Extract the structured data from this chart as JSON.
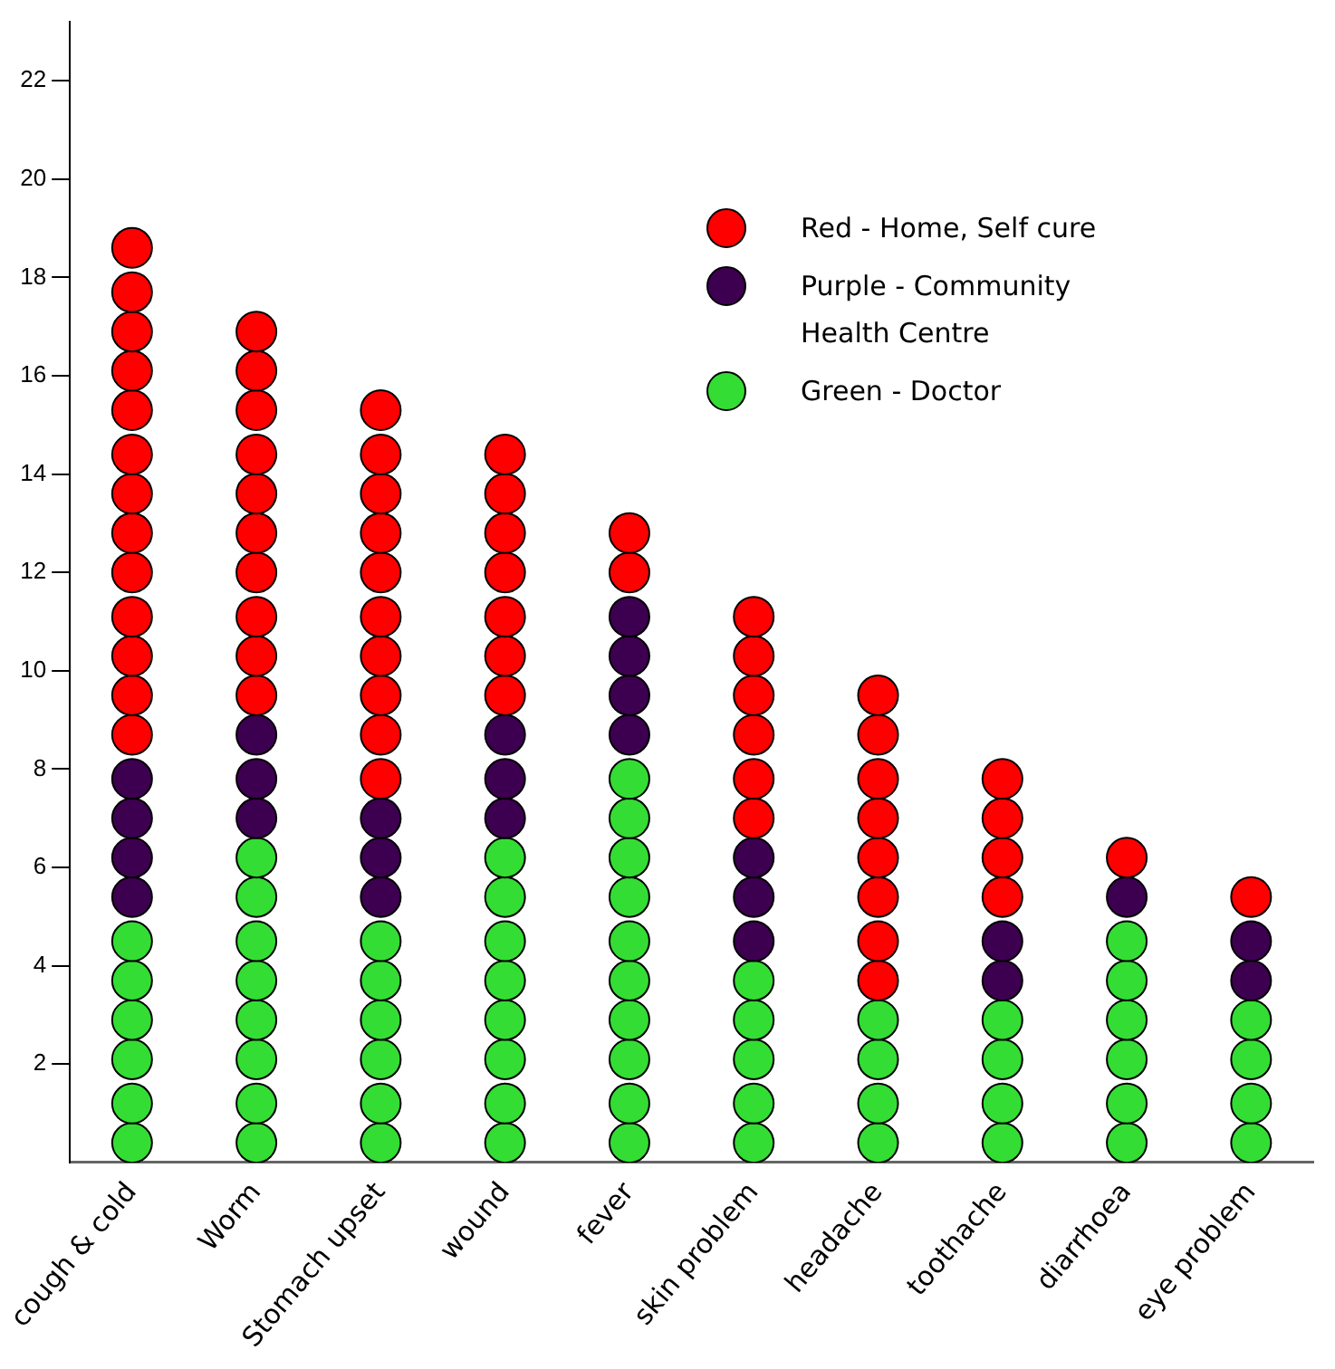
{
  "chart_data": {
    "type": "scatter",
    "categories": [
      "cough & cold",
      "Worm",
      "Stomach upset",
      "wound",
      "fever",
      "skin problem",
      "headache",
      "toothache",
      "diarrhoea",
      "eye problem"
    ],
    "ylim": [
      0,
      23.2
    ],
    "yticks": [
      2,
      4,
      6,
      8,
      10,
      12,
      14,
      16,
      18,
      20,
      22
    ],
    "grid": false,
    "legend": "top right",
    "marker": "circle",
    "series": [
      {
        "name": "Red - Home, Self cure",
        "color": "#ff0000",
        "x": [
          "cough & cold",
          "cough & cold",
          "cough & cold",
          "cough & cold",
          "cough & cold",
          "cough & cold",
          "cough & cold",
          "cough & cold",
          "cough & cold",
          "cough & cold",
          "cough & cold",
          "cough & cold",
          "cough & cold",
          "Worm",
          "Worm",
          "Worm",
          "Worm",
          "Worm",
          "Worm",
          "Worm",
          "Worm",
          "Worm",
          "Worm",
          "Stomach upset",
          "Stomach upset",
          "Stomach upset",
          "Stomach upset",
          "Stomach upset",
          "Stomach upset",
          "Stomach upset",
          "Stomach upset",
          "Stomach upset",
          "Stomach upset",
          "wound",
          "wound",
          "wound",
          "wound",
          "wound",
          "wound",
          "wound",
          "fever",
          "fever",
          "skin problem",
          "skin problem",
          "skin problem",
          "skin problem",
          "skin problem",
          "skin problem",
          "headache",
          "headache",
          "headache",
          "headache",
          "headache",
          "headache",
          "headache",
          "headache",
          "toothache",
          "toothache",
          "toothache",
          "toothache",
          "diarrhoea",
          "eye problem"
        ],
        "values": [
          8.7,
          9.5,
          10.3,
          11.1,
          12.0,
          12.8,
          13.6,
          14.4,
          15.3,
          16.1,
          16.9,
          17.7,
          18.6,
          9.5,
          10.3,
          11.1,
          12.0,
          12.8,
          13.6,
          14.4,
          15.3,
          16.1,
          16.9,
          7.8,
          8.7,
          9.5,
          10.3,
          11.1,
          12.0,
          12.8,
          13.6,
          14.4,
          15.3,
          9.5,
          10.3,
          11.1,
          12.0,
          12.8,
          13.6,
          14.4,
          12.0,
          12.8,
          7.0,
          7.8,
          8.7,
          9.5,
          10.3,
          11.1,
          3.7,
          4.5,
          5.4,
          6.2,
          7.0,
          7.8,
          8.7,
          9.5,
          5.4,
          6.2,
          7.0,
          7.8,
          6.2,
          5.4
        ]
      },
      {
        "name": "Purple - Community Health Centre",
        "color": "#3d0050",
        "x": [
          "cough & cold",
          "cough & cold",
          "cough & cold",
          "cough & cold",
          "Worm",
          "Worm",
          "Worm",
          "Stomach upset",
          "Stomach upset",
          "Stomach upset",
          "wound",
          "wound",
          "wound",
          "fever",
          "fever",
          "fever",
          "fever",
          "skin problem",
          "skin problem",
          "skin problem",
          "toothache",
          "toothache",
          "diarrhoea",
          "eye problem",
          "eye problem"
        ],
        "values": [
          5.4,
          6.2,
          7.0,
          7.8,
          7.0,
          7.8,
          8.7,
          5.4,
          6.2,
          7.0,
          7.0,
          7.8,
          8.7,
          8.7,
          9.5,
          10.3,
          11.1,
          4.5,
          5.4,
          6.2,
          3.7,
          4.5,
          5.4,
          3.7,
          4.5
        ]
      },
      {
        "name": "Green - Doctor",
        "color": "#33dd33",
        "x": [
          "cough & cold",
          "cough & cold",
          "cough & cold",
          "cough & cold",
          "cough & cold",
          "cough & cold",
          "Worm",
          "Worm",
          "Worm",
          "Worm",
          "Worm",
          "Worm",
          "Worm",
          "Worm",
          "Stomach upset",
          "Stomach upset",
          "Stomach upset",
          "Stomach upset",
          "Stomach upset",
          "Stomach upset",
          "wound",
          "wound",
          "wound",
          "wound",
          "wound",
          "wound",
          "wound",
          "wound",
          "fever",
          "fever",
          "fever",
          "fever",
          "fever",
          "fever",
          "fever",
          "fever",
          "fever",
          "fever",
          "skin problem",
          "skin problem",
          "skin problem",
          "skin problem",
          "skin problem",
          "headache",
          "headache",
          "headache",
          "headache",
          "toothache",
          "toothache",
          "toothache",
          "toothache",
          "diarrhoea",
          "diarrhoea",
          "diarrhoea",
          "diarrhoea",
          "diarrhoea",
          "diarrhoea",
          "eye problem",
          "eye problem",
          "eye problem",
          "eye problem"
        ],
        "values": [
          0.4,
          1.2,
          2.1,
          2.9,
          3.7,
          4.5,
          0.4,
          1.2,
          2.1,
          2.9,
          3.7,
          4.5,
          5.4,
          6.2,
          0.4,
          1.2,
          2.1,
          2.9,
          3.7,
          4.5,
          0.4,
          1.2,
          2.1,
          2.9,
          3.7,
          4.5,
          5.4,
          6.2,
          0.4,
          1.2,
          2.1,
          2.9,
          3.7,
          4.5,
          5.4,
          6.2,
          7.0,
          7.8,
          0.4,
          1.2,
          2.1,
          2.9,
          3.7,
          0.4,
          1.2,
          2.1,
          2.9,
          0.4,
          1.2,
          2.1,
          2.9,
          0.4,
          1.2,
          2.1,
          2.9,
          3.7,
          4.5,
          0.4,
          1.2,
          2.1,
          2.9
        ]
      }
    ]
  }
}
